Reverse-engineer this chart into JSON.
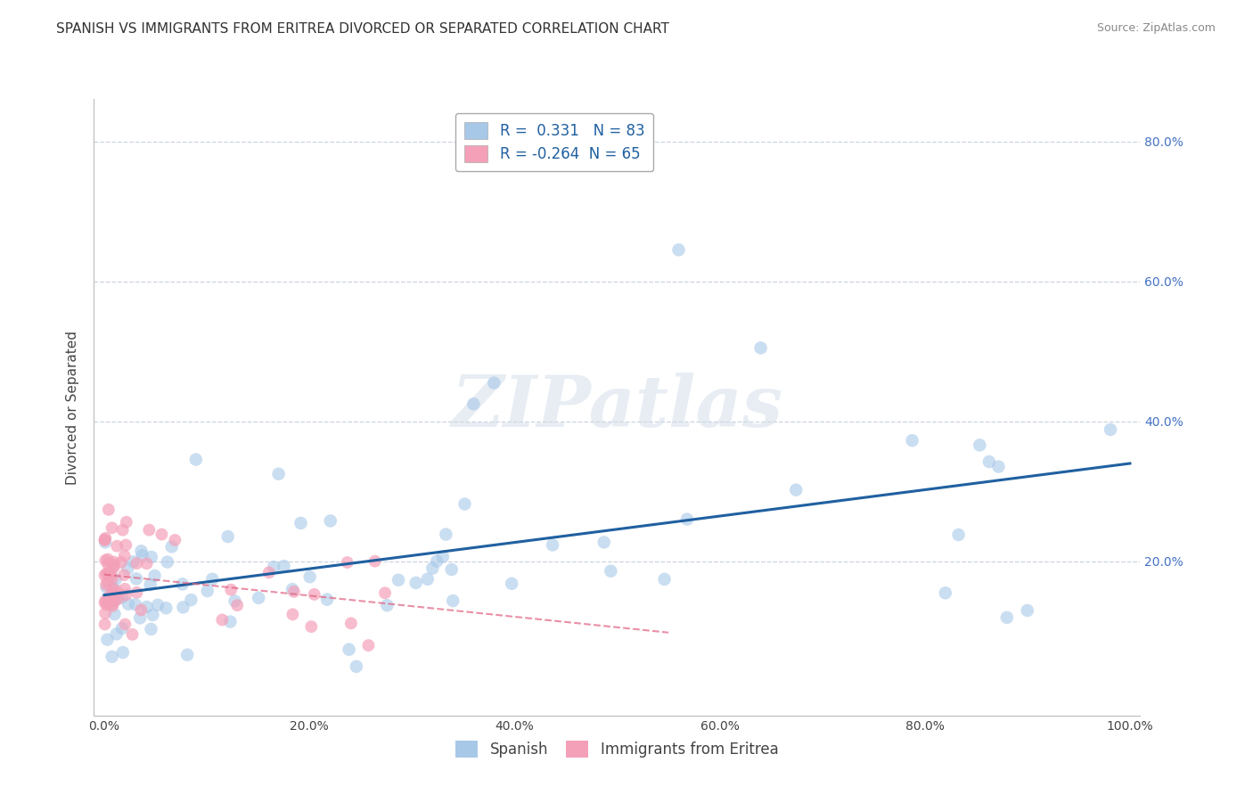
{
  "title": "SPANISH VS IMMIGRANTS FROM ERITREA DIVORCED OR SEPARATED CORRELATION CHART",
  "source": "Source: ZipAtlas.com",
  "ylabel": "Divorced or Separated",
  "legend_labels": [
    "Spanish",
    "Immigrants from Eritrea"
  ],
  "r_values": [
    0.331,
    -0.264
  ],
  "n_values": [
    83,
    65
  ],
  "blue_color": "#a8c8e8",
  "pink_color": "#f4a0b8",
  "blue_line_color": "#2060a0",
  "pink_line_color": "#e06080",
  "background_color": "#ffffff",
  "grid_color": "#c0c8d8",
  "xlim": [
    -0.01,
    1.01
  ],
  "ylim": [
    -0.02,
    0.86
  ],
  "xticks": [
    0.0,
    0.2,
    0.4,
    0.6,
    0.8,
    1.0
  ],
  "yticks": [
    0.2,
    0.4,
    0.6,
    0.8
  ],
  "title_fontsize": 11,
  "axis_label_fontsize": 11,
  "tick_fontsize": 10,
  "legend_fontsize": 12,
  "watermark_text": "ZIPatlas"
}
